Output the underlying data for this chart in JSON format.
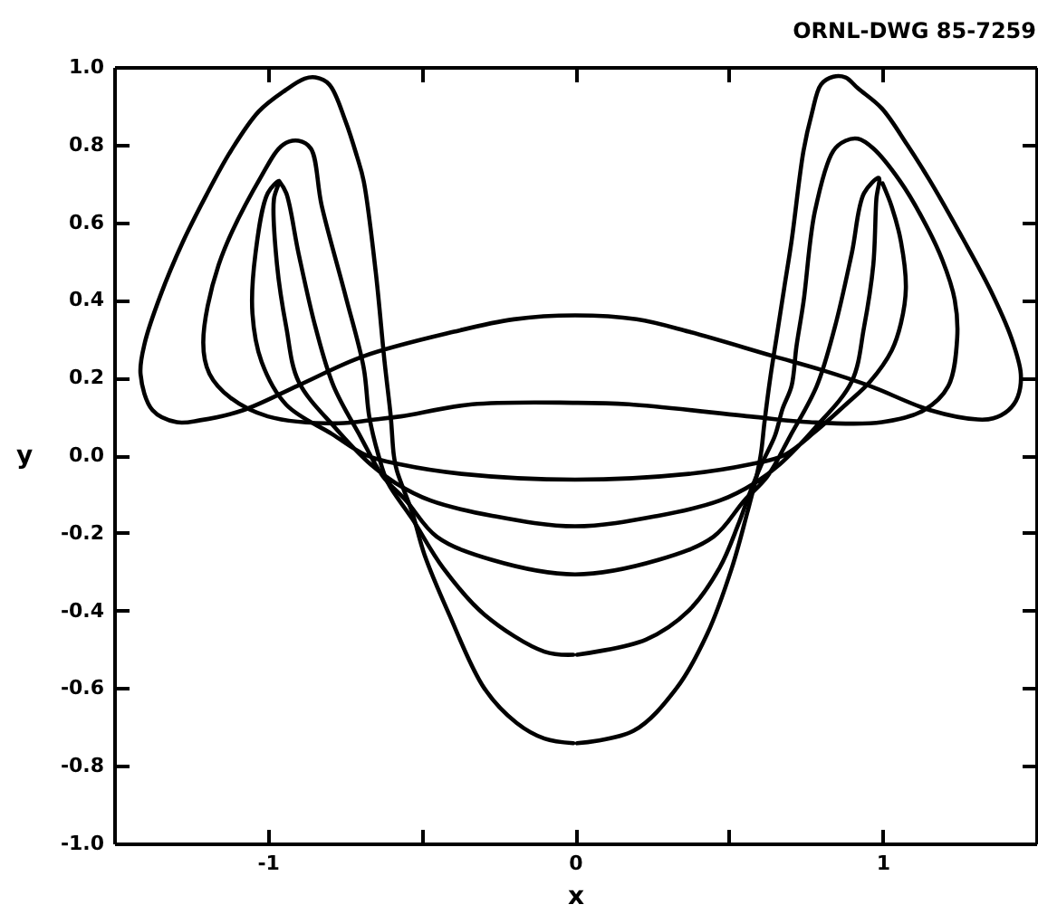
{
  "chart_data": {
    "type": "line",
    "xlabel": "x",
    "ylabel": "y",
    "annotations": [
      "ORNL-DWG 85-7259"
    ],
    "xlim": [
      -1.5,
      1.5
    ],
    "ylim": [
      -1,
      1
    ],
    "xticks": [
      -1,
      {
        "value": -0.5,
        "label": null
      },
      0,
      {
        "value": 0.5,
        "label": null
      },
      1
    ],
    "yticks": [
      {
        "value": -1,
        "label": "-1.0"
      },
      -0.8,
      -0.6,
      -0.4,
      -0.2,
      {
        "value": 0,
        "label": "0.0"
      },
      0.2,
      0.4,
      0.6,
      0.8,
      {
        "value": 1,
        "label": "1.0"
      }
    ],
    "series": [
      {
        "color": "#000000",
        "x": [
          0.006,
          0.19,
          0.33,
          0.43,
          0.51,
          0.56,
          0.59,
          0.605,
          0.616,
          0.635,
          0.655,
          0.68,
          0.704,
          0.743,
          0.77,
          0.8,
          0.84,
          0.88,
          0.92,
          0.998,
          1.08,
          1.155,
          1.26,
          1.35,
          1.42,
          1.45,
          1.44,
          1.41,
          1.36,
          1.31,
          1.155,
          0.96,
          0.8,
          0.645,
          0.37,
          0.2,
          0,
          -0.2,
          -0.394,
          -0.688,
          -0.9,
          -1.08,
          -1.22,
          -1.296,
          -1.375,
          -1.414,
          -1.4,
          -1.35,
          -1.276,
          -1.2,
          -1.12,
          -1.03,
          -0.943,
          -0.88,
          -0.845,
          -0.8,
          -0.747,
          -0.71,
          -0.688,
          -0.649,
          -0.62,
          -0.6,
          -0.59,
          -0.58,
          -0.53,
          -0.49,
          -0.41,
          -0.296,
          -0.19,
          -0.1,
          -0.006
        ],
        "values": [
          -0.742,
          -0.71,
          -0.6,
          -0.46,
          -0.29,
          -0.148,
          -0.055,
          0.007,
          0.085,
          0.2,
          0.302,
          0.43,
          0.551,
          0.784,
          0.88,
          0.955,
          0.975,
          0.973,
          0.945,
          0.893,
          0.8,
          0.706,
          0.56,
          0.427,
          0.3,
          0.209,
          0.15,
          0.116,
          0.095,
          0.092,
          0.116,
          0.178,
          0.22,
          0.255,
          0.318,
          0.35,
          0.36,
          0.35,
          0.318,
          0.255,
          0.18,
          0.116,
          0.09,
          0.085,
          0.116,
          0.209,
          0.29,
          0.41,
          0.55,
          0.67,
          0.784,
          0.885,
          0.94,
          0.97,
          0.973,
          0.955,
          0.86,
          0.77,
          0.706,
          0.473,
          0.24,
          0.1,
          0,
          -0.04,
          -0.148,
          -0.257,
          -0.41,
          -0.6,
          -0.69,
          -0.73,
          -0.742
        ]
      },
      {
        "color": "#000000",
        "x": [
          0.006,
          0.23,
          0.37,
          0.47,
          0.53,
          0.567,
          0.606,
          0.65,
          0.675,
          0.704,
          0.72,
          0.743,
          0.78,
          0.84,
          0.88,
          0.92,
          0.97,
          1.057,
          1.13,
          1.194,
          1.235,
          1.243,
          1.214,
          1.135,
          0.998,
          0.763,
          0.567,
          0.175,
          0,
          -0.335,
          -0.567,
          -0.65,
          -0.77,
          -1,
          -1.12,
          -1.19,
          -1.21,
          -1.16,
          -1.02,
          -0.95,
          -0.9,
          -0.86,
          -0.825,
          -0.747,
          -0.688,
          -0.67,
          -0.64,
          -0.61,
          -0.53,
          -0.43,
          -0.296,
          -0.1,
          -0.006
        ],
        "values": [
          -0.514,
          -0.475,
          -0.4,
          -0.29,
          -0.18,
          -0.1,
          -0.024,
          0.05,
          0.12,
          0.178,
          0.28,
          0.395,
          0.628,
          0.784,
          0.81,
          0.815,
          0.79,
          0.706,
          0.61,
          0.504,
          0.4,
          0.302,
          0.178,
          0.116,
          0.085,
          0.085,
          0.1,
          0.131,
          0.135,
          0.131,
          0.1,
          0.092,
          0.082,
          0.1,
          0.147,
          0.21,
          0.29,
          0.49,
          0.72,
          0.8,
          0.81,
          0.79,
          0.644,
          0.41,
          0.225,
          0.1,
          0,
          -0.07,
          -0.164,
          -0.29,
          -0.41,
          -0.506,
          -0.514
        ]
      },
      {
        "color": "#000000",
        "x": [
          -0.963,
          -0.94,
          -0.9,
          -0.845,
          -0.786,
          -0.7,
          -0.625,
          -0.55,
          -0.45,
          -0.27,
          0,
          0.27,
          0.45,
          0.55,
          0.625,
          0.7,
          0.786,
          0.845,
          0.9,
          0.94,
          0.988,
          0.98,
          0.97,
          0.94,
          0.9,
          0.78,
          0.665,
          0.586,
          0.47,
          0.27,
          0,
          -0.27,
          -0.47,
          -0.586,
          -0.665,
          -0.78,
          -0.9,
          -0.94,
          -0.97,
          -0.98,
          -0.963,
          -1,
          -1.04,
          -1.05,
          -1.02,
          -0.94,
          -0.79,
          -0.68,
          -0.567,
          -0.37,
          0,
          0.37,
          0.567,
          0.68,
          0.78,
          0.88,
          0.96,
          1.03,
          1.06,
          1.076,
          1.06,
          1.03,
          1
        ],
        "values": [
          0.706,
          0.675,
          0.52,
          0.33,
          0.178,
          0.05,
          -0.055,
          -0.117,
          -0.21,
          -0.27,
          -0.307,
          -0.27,
          -0.21,
          -0.117,
          -0.055,
          0.05,
          0.178,
          0.33,
          0.52,
          0.675,
          0.714,
          0.66,
          0.49,
          0.33,
          0.19,
          0.07,
          -0.024,
          -0.071,
          -0.117,
          -0.156,
          -0.183,
          -0.156,
          -0.117,
          -0.071,
          -0.024,
          0.07,
          0.19,
          0.33,
          0.49,
          0.66,
          0.706,
          0.675,
          0.52,
          0.365,
          0.24,
          0.13,
          0.054,
          0,
          -0.024,
          -0.048,
          -0.063,
          -0.048,
          -0.024,
          0,
          0.06,
          0.13,
          0.19,
          0.27,
          0.34,
          0.43,
          0.55,
          0.64,
          0.7
        ]
      }
    ]
  }
}
